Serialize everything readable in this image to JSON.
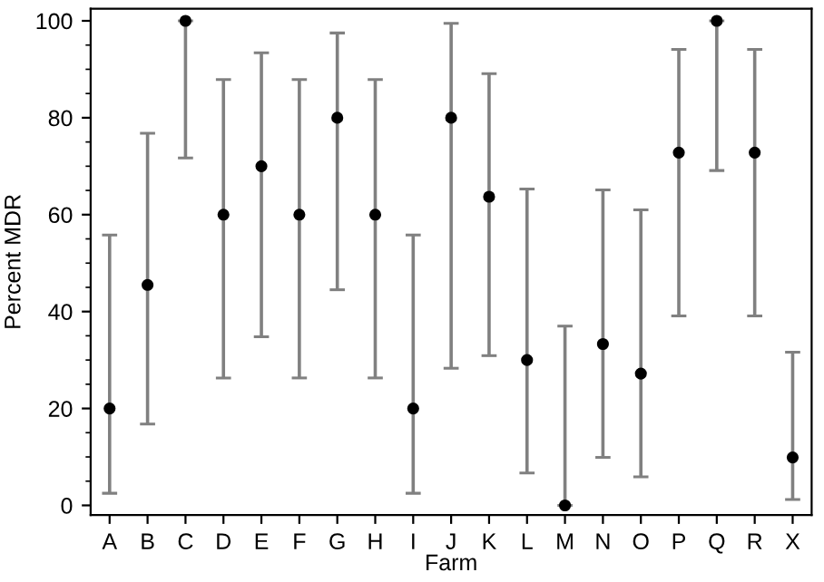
{
  "chart_data": {
    "type": "scatter",
    "xlabel": "Farm",
    "ylabel": "Percent MDR",
    "categories": [
      "A",
      "B",
      "C",
      "D",
      "E",
      "F",
      "G",
      "H",
      "I",
      "J",
      "K",
      "L",
      "M",
      "N",
      "O",
      "P",
      "Q",
      "R",
      "X"
    ],
    "values": [
      20,
      45.5,
      100,
      60,
      70,
      60,
      80,
      60,
      20,
      80,
      63.7,
      30,
      0,
      33.3,
      27.2,
      72.8,
      100,
      72.8,
      9.9
    ],
    "errors": [
      [
        2.5,
        55.8
      ],
      [
        16.8,
        76.8
      ],
      [
        71.7,
        100
      ],
      [
        26.3,
        87.9
      ],
      [
        34.8,
        93.4
      ],
      [
        26.3,
        87.9
      ],
      [
        44.5,
        97.5
      ],
      [
        26.3,
        87.9
      ],
      [
        2.5,
        55.8
      ],
      [
        28.3,
        99.5
      ],
      [
        30.9,
        89.1
      ],
      [
        6.7,
        65.3
      ],
      [
        0,
        37
      ],
      [
        9.9,
        65.1
      ],
      [
        5.9,
        61
      ],
      [
        39.1,
        94.1
      ],
      [
        69.1,
        100
      ],
      [
        39.1,
        94.1
      ],
      [
        1.2,
        31.6
      ]
    ],
    "color": "#000000",
    "marker": "circle",
    "ylim": [
      -2,
      102.5
    ],
    "yticks": [
      0,
      20,
      40,
      60,
      80,
      100
    ],
    "grid": false,
    "legend": false
  }
}
